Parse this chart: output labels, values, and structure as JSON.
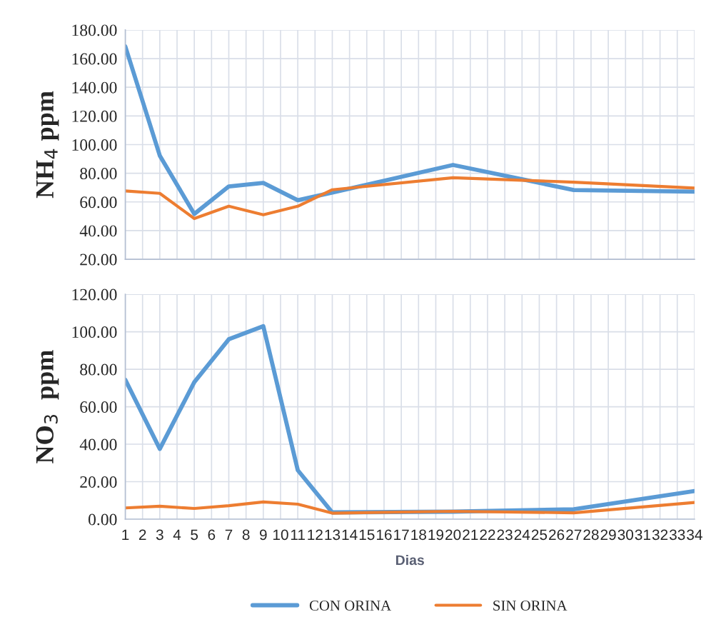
{
  "chart_data": [
    {
      "type": "line",
      "ylabel": "NH$_{4}$ ppm",
      "x": [
        1,
        3,
        5,
        7,
        9,
        11,
        13,
        20,
        27,
        34
      ],
      "xlim": [
        1,
        34
      ],
      "xticks": [
        1,
        2,
        3,
        4,
        5,
        6,
        7,
        8,
        9,
        10,
        11,
        12,
        13,
        14,
        15,
        16,
        17,
        18,
        19,
        20,
        21,
        22,
        23,
        24,
        25,
        26,
        27,
        28,
        29,
        30,
        31,
        32,
        33,
        34
      ],
      "ylim": [
        20,
        180
      ],
      "yticks": [
        {
          "value": 20,
          "label": "20.00"
        },
        {
          "value": 40,
          "label": "40.00"
        },
        {
          "value": 60,
          "label": "60.00"
        },
        {
          "value": 80,
          "label": "80.00"
        },
        {
          "value": 100,
          "label": "100.00"
        },
        {
          "value": 120,
          "label": "120.00"
        },
        {
          "value": 140,
          "label": "140.00"
        },
        {
          "value": 160,
          "label": "160.00"
        },
        {
          "value": 180,
          "label": "180.00"
        }
      ],
      "grid": true,
      "tick_labels": "y",
      "marker": "none",
      "line_style": "solid",
      "series": [
        {
          "color": "#5b9bd5",
          "values": [
            168.5,
            92.3,
            51.6,
            70.8,
            73.3,
            61.2,
            66.5,
            85.8,
            68.3,
            67.2
          ]
        },
        {
          "color": "#ed7d31",
          "values": [
            67.7,
            66,
            48.4,
            57,
            51,
            57,
            68.5,
            76.9,
            73.8,
            69.7
          ]
        }
      ]
    },
    {
      "type": "line",
      "ylabel": "NO$_{3}$  ppm",
      "xlabel": "Dias",
      "x": [
        1,
        3,
        5,
        7,
        9,
        11,
        13,
        20,
        27,
        34
      ],
      "xlim": [
        1,
        34
      ],
      "xticks": [
        1,
        2,
        3,
        4,
        5,
        6,
        7,
        8,
        9,
        10,
        11,
        12,
        13,
        14,
        15,
        16,
        17,
        18,
        19,
        20,
        21,
        22,
        23,
        24,
        25,
        26,
        27,
        28,
        29,
        30,
        31,
        32,
        33,
        34
      ],
      "ylim": [
        0,
        120
      ],
      "yticks": [
        {
          "value": 0,
          "label": "0.00"
        },
        {
          "value": 20,
          "label": "20.00"
        },
        {
          "value": 40,
          "label": "40.00"
        },
        {
          "value": 60,
          "label": "60.00"
        },
        {
          "value": 80,
          "label": "80.00"
        },
        {
          "value": 100,
          "label": "100.00"
        },
        {
          "value": 120,
          "label": "120.00"
        }
      ],
      "grid": true,
      "legend": "bottom",
      "marker": "none",
      "line_style": "solid",
      "series": [
        {
          "name": "CON ORINA",
          "color": "#5b9bd5",
          "values": [
            74.4,
            37.5,
            73.1,
            96,
            103,
            26.1,
            3.6,
            4,
            5.3,
            15
          ]
        },
        {
          "name": "SIN ORINA",
          "color": "#ed7d31",
          "values": [
            6,
            6.9,
            5.7,
            7.2,
            9.2,
            8,
            3.2,
            4.2,
            3.4,
            8.9
          ]
        }
      ]
    }
  ]
}
